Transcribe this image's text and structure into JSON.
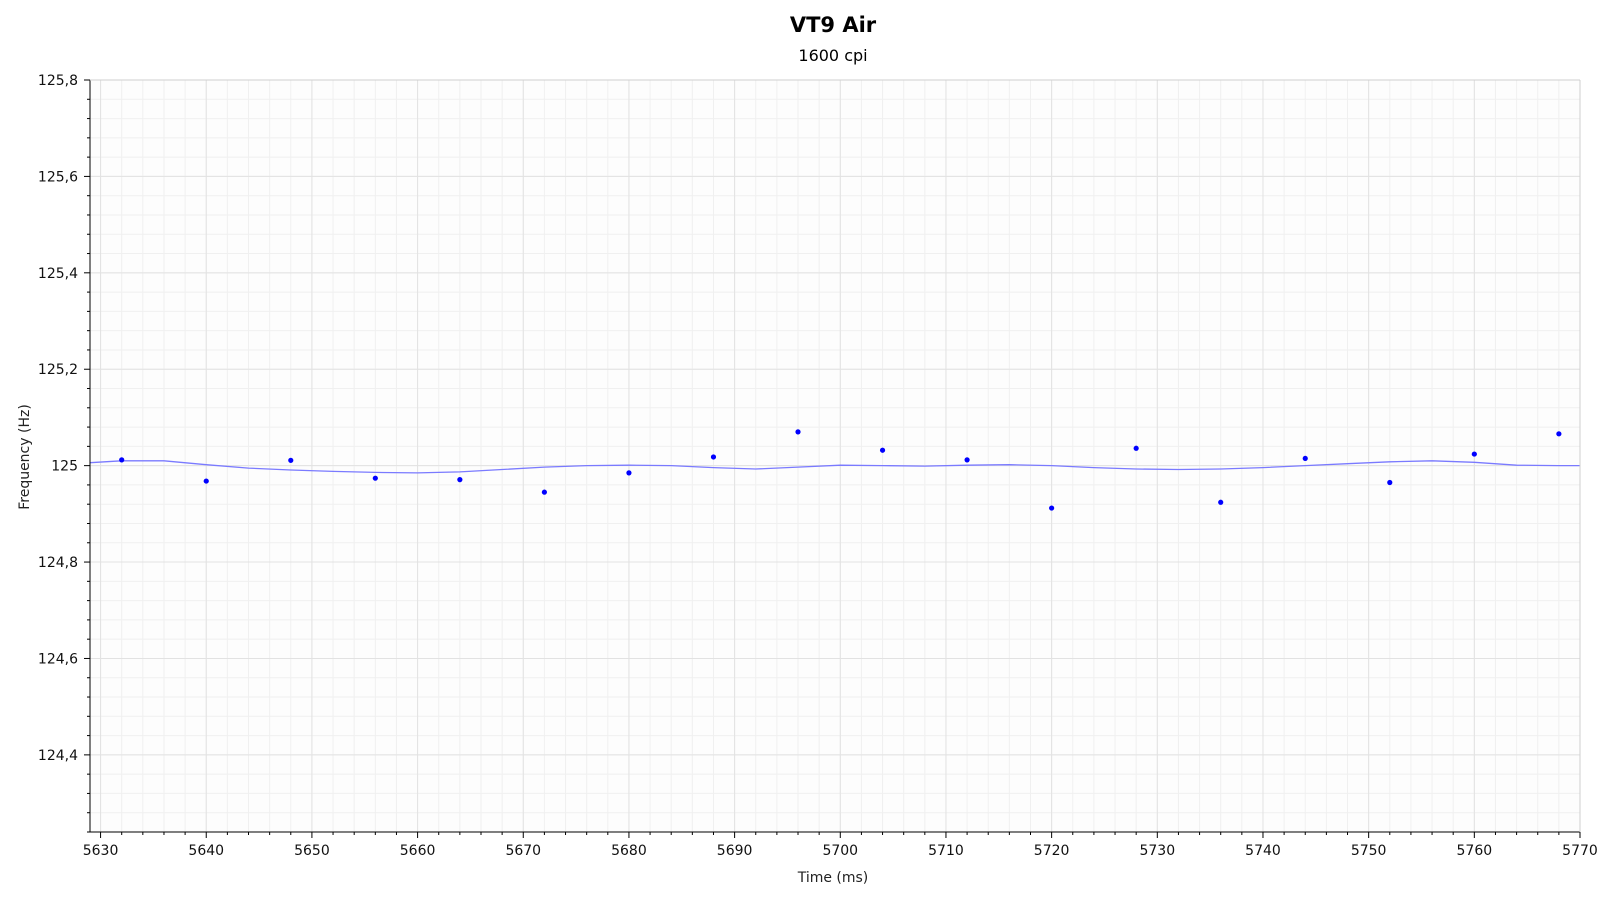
{
  "chart_data": {
    "type": "scatter",
    "title": "VT9 Air",
    "subtitle": "1600 cpi",
    "xlabel": "Time (ms)",
    "ylabel": "Frequency (Hz)",
    "xlim": [
      5629,
      5770
    ],
    "ylim": [
      124.24,
      125.8
    ],
    "x_ticks": [
      5630,
      5640,
      5650,
      5660,
      5670,
      5680,
      5690,
      5700,
      5710,
      5720,
      5730,
      5740,
      5750,
      5760,
      5770
    ],
    "x_tick_labels": [
      "5630",
      "5640",
      "5650",
      "5660",
      "5670",
      "5680",
      "5690",
      "5700",
      "5710",
      "5720",
      "5730",
      "5740",
      "5750",
      "5760",
      "5770"
    ],
    "y_ticks": [
      124.4,
      124.6,
      124.8,
      125,
      125.2,
      125.4,
      125.6,
      125.8
    ],
    "y_tick_labels": [
      "124,4",
      "124,6",
      "124,8",
      "125",
      "125,2",
      "125,4",
      "125,6",
      "125,8"
    ],
    "grid": true,
    "series": [
      {
        "mode": "markers",
        "color": "#0000ff",
        "x": [
          5632,
          5640,
          5648,
          5656,
          5664,
          5672,
          5680,
          5688,
          5696,
          5704,
          5712,
          5720,
          5728,
          5736,
          5744,
          5752,
          5760,
          5768
        ],
        "y": [
          125.012,
          124.968,
          125.011,
          124.974,
          124.971,
          124.945,
          124.985,
          125.018,
          125.07,
          125.032,
          125.012,
          124.912,
          125.036,
          124.924,
          125.015,
          124.965,
          125.024,
          125.066
        ]
      },
      {
        "mode": "line",
        "color": "#7a7aff",
        "x": [
          5629,
          5632,
          5636,
          5640,
          5644,
          5648,
          5652,
          5656,
          5660,
          5664,
          5668,
          5672,
          5676,
          5680,
          5684,
          5688,
          5692,
          5696,
          5700,
          5704,
          5708,
          5712,
          5716,
          5720,
          5724,
          5728,
          5732,
          5736,
          5740,
          5744,
          5748,
          5752,
          5756,
          5760,
          5764,
          5768,
          5770
        ],
        "y": [
          125.006,
          125.01,
          125.01,
          125.002,
          124.995,
          124.991,
          124.988,
          124.986,
          124.985,
          124.987,
          124.992,
          124.997,
          125.0,
          125.001,
          125.0,
          124.996,
          124.993,
          124.997,
          125.001,
          125.0,
          124.999,
          125.001,
          125.002,
          125.0,
          124.996,
          124.993,
          124.992,
          124.993,
          124.996,
          125.0,
          125.004,
          125.008,
          125.01,
          125.007,
          125.001,
          125.0,
          125.0
        ]
      }
    ]
  }
}
